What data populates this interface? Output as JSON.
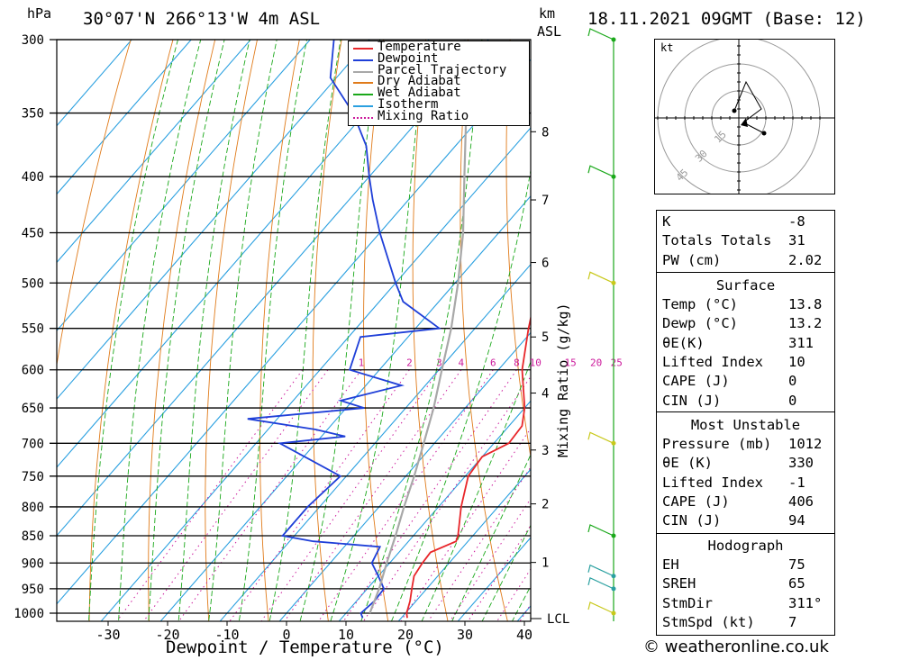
{
  "header": {
    "hpa": "hPa",
    "location": "30°07'N 266°13'W 4m ASL",
    "km": "km",
    "asl": "ASL",
    "datetime": "18.11.2021 09GMT (Base: 12)",
    "credit": "© weatheronline.co.uk"
  },
  "chart_data": {
    "type": "line",
    "title": "30°07'N 266°13'W 4m ASL",
    "xlabel": "Dewpoint / Temperature (°C)",
    "ylabel": "hPa",
    "x_ticks": [
      "-30",
      "-20",
      "-10",
      "0",
      "10",
      "20",
      "30",
      "40"
    ],
    "x_tick_values": [
      -30,
      -20,
      -10,
      0,
      10,
      20,
      30,
      40
    ],
    "pressure_levels": [
      300,
      350,
      400,
      450,
      500,
      550,
      600,
      650,
      700,
      750,
      800,
      850,
      900,
      950,
      1000
    ],
    "km_ticks": [
      {
        "label": "1",
        "p": 899
      },
      {
        "label": "2",
        "p": 795
      },
      {
        "label": "3",
        "p": 710
      },
      {
        "label": "4",
        "p": 630
      },
      {
        "label": "5",
        "p": 560
      },
      {
        "label": "6",
        "p": 479
      },
      {
        "label": "7",
        "p": 420
      },
      {
        "label": "8",
        "p": 364
      }
    ],
    "mixing_ratio_label": "Mixing Ratio (g/kg)",
    "mixing_ratio_ticks": [
      "1",
      "2",
      "3",
      "4",
      "6",
      "8",
      "10",
      "15",
      "20",
      "25"
    ],
    "lcl_label": "LCL",
    "legend": [
      "Temperature",
      "Dewpoint",
      "Parcel Trajectory",
      "Dry Adiabat",
      "Wet Adiabat",
      "Isotherm",
      "Mixing Ratio"
    ],
    "colors": {
      "temperature": "#e8262a",
      "dewpoint": "#1f3fd8",
      "parcel": "#a8a8a8",
      "dry_adiabat": "#e07b1a",
      "wet_adiabat": "#1aa81a",
      "isotherm": "#2aa0e0",
      "mixing_ratio": "#cc1a9c"
    },
    "series": [
      {
        "name": "Temperature",
        "points": [
          [
            1010,
            21
          ],
          [
            1000,
            20.2
          ],
          [
            975,
            19
          ],
          [
            950,
            17.5
          ],
          [
            925,
            16
          ],
          [
            900,
            15.5
          ],
          [
            880,
            15.3
          ],
          [
            860,
            18
          ],
          [
            850,
            17.5
          ],
          [
            800,
            13.8
          ],
          [
            750,
            10.5
          ],
          [
            720,
            10
          ],
          [
            700,
            12.5
          ],
          [
            675,
            12.2
          ],
          [
            650,
            10
          ],
          [
            600,
            4
          ],
          [
            550,
            -1
          ],
          [
            500,
            -6
          ],
          [
            450,
            -12
          ],
          [
            400,
            -17
          ],
          [
            375,
            -20.5
          ],
          [
            350,
            -24
          ],
          [
            300,
            -32
          ]
        ]
      },
      {
        "name": "Dewpoint",
        "points": [
          [
            1010,
            13.5
          ],
          [
            1000,
            12.5
          ],
          [
            975,
            13
          ],
          [
            950,
            12.8
          ],
          [
            925,
            10
          ],
          [
            900,
            7
          ],
          [
            870,
            6
          ],
          [
            860,
            -6
          ],
          [
            850,
            -12
          ],
          [
            800,
            -12
          ],
          [
            750,
            -11
          ],
          [
            700,
            -26
          ],
          [
            690,
            -16
          ],
          [
            680,
            -22
          ],
          [
            665,
            -35
          ],
          [
            650,
            -17
          ],
          [
            640,
            -22
          ],
          [
            620,
            -14
          ],
          [
            600,
            -25
          ],
          [
            560,
            -28
          ],
          [
            550,
            -16
          ],
          [
            520,
            -26
          ],
          [
            500,
            -30
          ],
          [
            450,
            -40
          ],
          [
            420,
            -46
          ],
          [
            400,
            -50
          ],
          [
            375,
            -55
          ],
          [
            350,
            -62
          ],
          [
            325,
            -71
          ],
          [
            300,
            -76
          ]
        ]
      },
      {
        "name": "Parcel Trajectory",
        "points": [
          [
            1000,
            14
          ],
          [
            950,
            12
          ],
          [
            900,
            9.5
          ],
          [
            850,
            7
          ],
          [
            800,
            4.2
          ],
          [
            750,
            1.4
          ],
          [
            700,
            -1.8
          ],
          [
            650,
            -5.3
          ],
          [
            600,
            -9.5
          ],
          [
            550,
            -14
          ],
          [
            500,
            -19.5
          ],
          [
            450,
            -26
          ],
          [
            400,
            -34
          ],
          [
            350,
            -43
          ],
          [
            300,
            -54
          ]
        ]
      }
    ]
  },
  "wind_barbs": [
    {
      "level": "300"
    },
    {
      "level": "400"
    },
    {
      "level": "500"
    },
    {
      "level": "700"
    },
    {
      "level": "850"
    },
    {
      "level": "925"
    },
    {
      "level": "950"
    },
    {
      "level": "1000"
    }
  ],
  "hodograph": {
    "unit": "kt",
    "ring_labels": [
      "15",
      "30",
      "45"
    ]
  },
  "indices": {
    "rows": [
      {
        "key": "K",
        "value": "-8"
      },
      {
        "key": "Totals Totals",
        "value": "31"
      },
      {
        "key": "PW (cm)",
        "value": "2.02"
      }
    ]
  },
  "surface": {
    "title": "Surface",
    "rows": [
      {
        "key": "Temp (°C)",
        "value": "13.8"
      },
      {
        "key": "Dewp (°C)",
        "value": "13.2"
      },
      {
        "key": "θE(K)",
        "value": "311"
      },
      {
        "key": "Lifted Index",
        "value": "10"
      },
      {
        "key": "CAPE (J)",
        "value": "0"
      },
      {
        "key": "CIN (J)",
        "value": "0"
      }
    ]
  },
  "most_unstable": {
    "title": "Most Unstable",
    "rows": [
      {
        "key": "Pressure (mb)",
        "value": "1012"
      },
      {
        "key": "θE (K)",
        "value": "330"
      },
      {
        "key": "Lifted Index",
        "value": "-1"
      },
      {
        "key": "CAPE (J)",
        "value": "406"
      },
      {
        "key": "CIN (J)",
        "value": "94"
      }
    ]
  },
  "hodograph_params": {
    "title": "Hodograph",
    "rows": [
      {
        "key": "EH",
        "value": "75"
      },
      {
        "key": "SREH",
        "value": "65"
      },
      {
        "key": "StmDir",
        "value": "311°"
      },
      {
        "key": "StmSpd (kt)",
        "value": "7"
      }
    ]
  }
}
